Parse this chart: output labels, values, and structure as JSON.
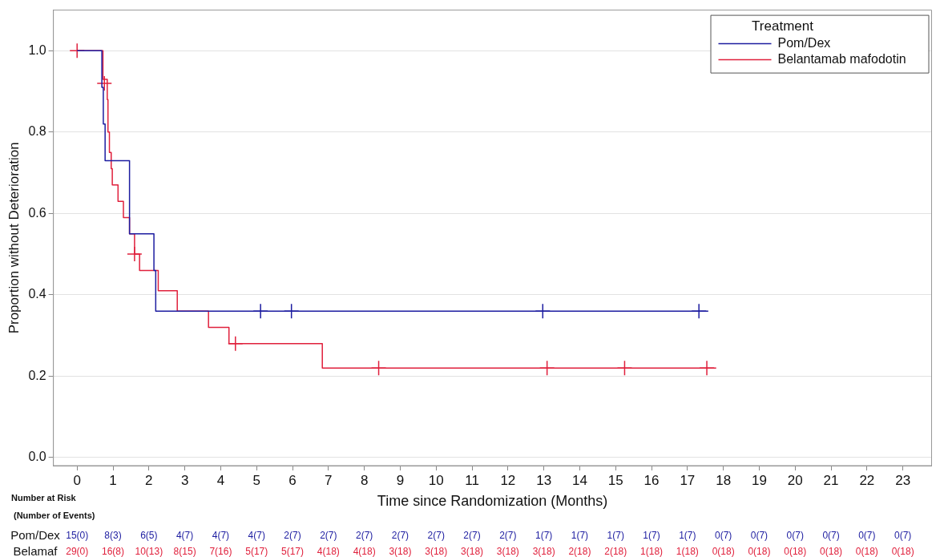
{
  "chart_data": {
    "type": "step",
    "xlabel": "Time since Randomization (Months)",
    "ylabel": "Proportion without Deterioration",
    "legend_title": "Treatment",
    "legend": "top right",
    "grid": "y",
    "line_style": "solid",
    "xlim": [
      -0.66,
      23.8
    ],
    "xticks": [
      0,
      1,
      2,
      3,
      4,
      5,
      6,
      7,
      8,
      9,
      10,
      11,
      12,
      13,
      14,
      15,
      16,
      17,
      18,
      19,
      20,
      21,
      22,
      23
    ],
    "ylim": [
      -0.02,
      1.1
    ],
    "yticks": [
      {
        "value": 0,
        "label": "0.0"
      },
      {
        "value": 0.2,
        "label": "0.2"
      },
      {
        "value": 0.4,
        "label": "0.4"
      },
      {
        "value": 0.6,
        "label": "0.6"
      },
      {
        "value": 0.8,
        "label": "0.8"
      },
      {
        "value": 1,
        "label": "1.0"
      }
    ],
    "series": [
      {
        "name": "Pom/Dex",
        "type": "step",
        "color": "#1c1ca0",
        "x": [
          0,
          0.69,
          0.73,
          0.78,
          1.46,
          2.14,
          2.19,
          17.58
        ],
        "values": [
          1,
          0.91,
          0.82,
          0.73,
          0.55,
          0.46,
          0.36,
          0.36
        ]
      },
      {
        "name": "Belantamab mafodotin",
        "type": "step",
        "color": "#e0203c",
        "x": [
          0,
          0.72,
          0.84,
          0.86,
          0.9,
          0.95,
          0.98,
          1.14,
          1.29,
          1.46,
          1.6,
          1.74,
          2.26,
          2.79,
          3.66,
          4.23,
          6.83,
          17.8
        ],
        "values": [
          1,
          0.93,
          0.88,
          0.8,
          0.75,
          0.71,
          0.67,
          0.63,
          0.59,
          0.55,
          0.5,
          0.46,
          0.41,
          0.36,
          0.32,
          0.28,
          0.22,
          0.22
        ]
      },
      {
        "type": "scatter",
        "marker": "cross",
        "color": "#1c1ca0",
        "x": [
          5.11,
          5.97,
          12.97,
          17.32
        ],
        "values": [
          0.36,
          0.36,
          0.36,
          0.36
        ]
      },
      {
        "type": "scatter",
        "marker": "cross",
        "color": "#e0203c",
        "x": [
          0,
          0.76,
          1.6,
          4.41,
          8.4,
          13.09,
          15.25,
          17.54
        ],
        "values": [
          1,
          0.92,
          0.5,
          0.28,
          0.22,
          0.22,
          0.22,
          0.22
        ]
      }
    ],
    "annotations": [
      "Number at Risk",
      "(Number of Events)",
      "Pom/Dex",
      "15(0)",
      "8(3)",
      "6(5)",
      "4(7)",
      "4(7)",
      "4(7)",
      "2(7)",
      "2(7)",
      "2(7)",
      "2(7)",
      "2(7)",
      "2(7)",
      "2(7)",
      "1(7)",
      "1(7)",
      "1(7)",
      "1(7)",
      "1(7)",
      "0(7)",
      "0(7)",
      "0(7)",
      "0(7)",
      "0(7)",
      "0(7)",
      "Belamaf",
      "29(0)",
      "16(8)",
      "10(13)",
      "8(15)",
      "7(16)",
      "5(17)",
      "5(17)",
      "4(18)",
      "4(18)",
      "3(18)",
      "3(18)",
      "3(18)",
      "3(18)",
      "3(18)",
      "2(18)",
      "2(18)",
      "1(18)",
      "1(18)",
      "0(18)",
      "0(18)",
      "0(18)",
      "0(18)",
      "0(18)",
      "0(18)"
    ]
  }
}
